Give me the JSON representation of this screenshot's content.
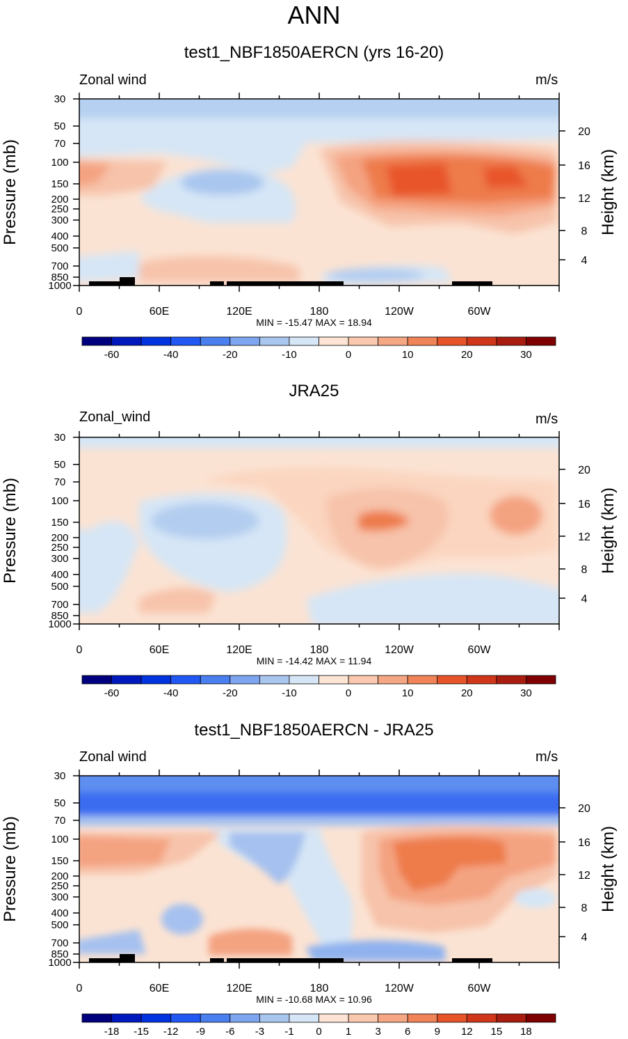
{
  "title": "ANN",
  "chart_data": [
    {
      "type": "heatmap",
      "title": "test1_NBF1850AERCN (yrs 16-20)",
      "variable_label": "Zonal wind",
      "units": "m/s",
      "ylabel": "Pressure (mb)",
      "ylabel_right": "Height (km)",
      "x_ticks": [
        "0",
        "60E",
        "120E",
        "180",
        "120W",
        "60W"
      ],
      "y_ticks": [
        "30",
        "50",
        "70",
        "100",
        "150",
        "200",
        "250",
        "300",
        "400",
        "500",
        "700",
        "850",
        "1000"
      ],
      "height_ticks": [
        "20",
        "16",
        "12",
        "8",
        "4"
      ],
      "min_max_text": "MIN = -15.47  MAX =  18.94",
      "colorbar_labels": [
        "-60",
        "-40",
        "-20",
        "-10",
        "0",
        "10",
        "20",
        "30"
      ],
      "colors": [
        "#ccdff3",
        "#fbe3d3",
        "#f7c3aa",
        "#f4a381",
        "#ee7c4c",
        "#e8542a",
        "#b5b9f0",
        "#a6c1ef",
        "#0000ff",
        "#000000"
      ]
    },
    {
      "type": "heatmap",
      "title": "JRA25",
      "variable_label": "Zonal_wind",
      "units": "m/s",
      "ylabel": "Pressure (mb)",
      "ylabel_right": "Height (km)",
      "x_ticks": [
        "0",
        "60E",
        "120E",
        "180",
        "120W",
        "60W"
      ],
      "y_ticks": [
        "30",
        "50",
        "70",
        "100",
        "150",
        "200",
        "250",
        "300",
        "400",
        "500",
        "700",
        "850",
        "1000"
      ],
      "height_ticks": [
        "20",
        "16",
        "12",
        "8",
        "4"
      ],
      "min_max_text": "MIN = -14.42  MAX =  11.94",
      "colorbar_labels": [
        "-60",
        "-40",
        "-20",
        "-10",
        "0",
        "10",
        "20",
        "30"
      ]
    },
    {
      "type": "heatmap",
      "title": "test1_NBF1850AERCN - JRA25",
      "variable_label": "Zonal wind",
      "units": "m/s",
      "ylabel": "Pressure (mb)",
      "ylabel_right": "Height (km)",
      "x_ticks": [
        "0",
        "60E",
        "120E",
        "180",
        "120W",
        "60W"
      ],
      "y_ticks": [
        "30",
        "50",
        "70",
        "100",
        "150",
        "200",
        "250",
        "300",
        "400",
        "500",
        "700",
        "850",
        "1000"
      ],
      "height_ticks": [
        "20",
        "16",
        "12",
        "8",
        "4"
      ],
      "min_max_text": "MIN = -10.68  MAX =  10.96",
      "colorbar_labels": [
        "-18",
        "-15",
        "-12",
        "-9",
        "-6",
        "-3",
        "-1",
        "0",
        "1",
        "3",
        "6",
        "9",
        "12",
        "15",
        "18"
      ]
    }
  ]
}
